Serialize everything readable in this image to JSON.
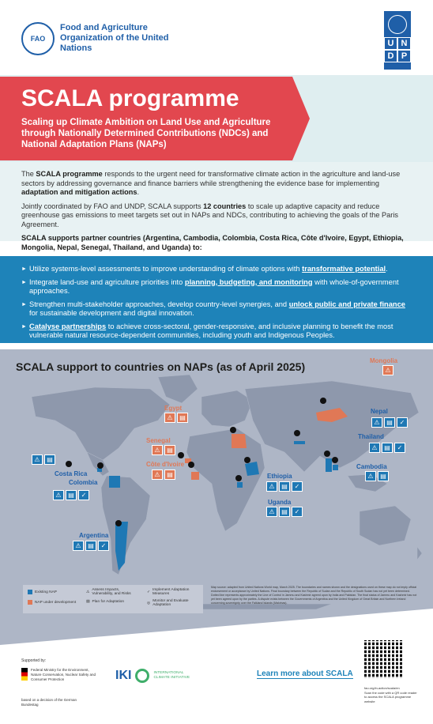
{
  "header": {
    "fao_logo_text": "FAO",
    "fao_name": "Food and Agriculture Organization of the United Nations",
    "undp_letters": [
      "U",
      "N",
      "D",
      "P"
    ]
  },
  "banner": {
    "title": "SCALA programme",
    "subtitle": "Scaling up Climate Ambition on Land Use and Agriculture through Nationally Determined Contributions (NDCs) and National Adaptation Plans (NAPs)"
  },
  "intro": {
    "p1_a": "The ",
    "p1_bold": "SCALA programme",
    "p1_b": " responds to the urgent need for transformative climate action in the agriculture and land-use sectors by addressing governance and finance barriers while strengthening the evidence base for implementing ",
    "p1_bold2": "adaptation and mitigation actions",
    "p1_c": ".",
    "p2_a": "Jointly coordinated by FAO and UNDP, SCALA supports ",
    "p2_bold": "12 countries",
    "p2_b": " to scale up adaptive capacity and reduce greenhouse gas emissions to meet targets set out in NAPs and NDCs, contributing to achieving the goals of the Paris Agreement.",
    "p3": "SCALA supports partner countries (Argentina, Cambodia, Colombia, Costa Rica, Côte d'Ivoire, Egypt, Ethiopia, Mongolia, Nepal, Senegal, Thailand, and Uganda) to:"
  },
  "bullets": [
    {
      "a": "Utilize systems-level assessments to improve understanding of climate options with ",
      "link": "transformative potential",
      "b": "."
    },
    {
      "a": "Integrate land-use and agriculture priorities into ",
      "link": "planning, budgeting, and monitoring",
      "b": " with whole-of-government approaches."
    },
    {
      "a": "Strengthen multi-stakeholder approaches, develop country-level synergies, and ",
      "link": "unlock public and private finance",
      "b": " for sustainable development and digital innovation."
    },
    {
      "a": "",
      "link": "Catalyse partnerships",
      "b": " to achieve cross-sectoral, gender-responsive, and inclusive planning to benefit the most vulnerable natural resource-dependent communities, including youth and Indigenous Peoples."
    }
  ],
  "map": {
    "title": "SCALA support to countries on NAPs (as of April 2025)",
    "countries": {
      "mongolia": "Mongolia",
      "egypt": "Egypt",
      "nepal": "Nepal",
      "thailand": "Thailand",
      "senegal": "Senegal",
      "cote": "Côte d'Ivoire",
      "cambodia": "Cambodia",
      "ethiopia": "Ethiopia",
      "uganda": "Uganda",
      "costa_rica": "Costa Rica",
      "colombia": "Colombia",
      "argentina": "Argentina"
    },
    "legend": {
      "existing": "Existing NAP",
      "under_dev": "NAP under development",
      "assess": "Assess Impacts, Vulnerability, and Risks",
      "plan": "Plan for Adaptation",
      "implement": "Implement Adaptation Measures",
      "monitor": "Monitor and Evaluate Adaptation"
    },
    "colors": {
      "existing": "#1f78b4",
      "under_dev": "#e07856"
    },
    "source": "Map source: adapted from United Nations World map, March 2025. The boundaries and names shown and the designations used on these map do not imply official endorsement or acceptance by United Nations. Final boundary between the Republic of Sudan and the Republic of South Sudan has not yet been determined. Dotted line represents approximately the Line of Control in Jammu and Kashmir agreed upon by India and Pakistan. The final status of Jammu and Kashmir has not yet been agreed upon by the parties. A dispute exists between the Governments of Argentina and the United Kingdom of Great Britain and Northern Ireland concerning sovereignty over the Falkland Islands (Malvinas)."
  },
  "footer": {
    "supported": "Supported by:",
    "bmu": "Federal Ministry for the Environment, Nature Conservation, Nuclear Safety and Consumer Protection",
    "bundestag": "based on a decision of the German Bundestag",
    "iki_word": "IKI",
    "iki_text": "INTERNATIONAL CLIMATE INITIATIVE",
    "learn_more": "Learn more about SCALA",
    "qr_url": "fao.org/in-action/scala/en",
    "qr_text": "Scan the code with a QR code reader to access the SCALA programme website"
  }
}
